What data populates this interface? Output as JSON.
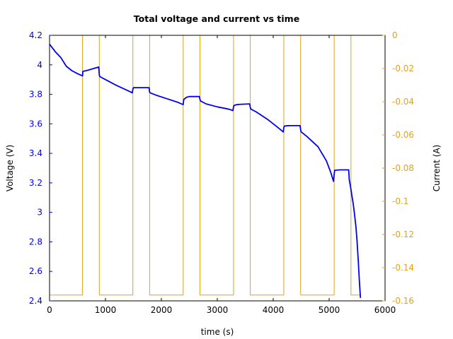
{
  "chart_data": {
    "type": "line",
    "title": "Total voltage and current vs time",
    "xlabel": "time (s)",
    "ylabel": "Voltage (V)",
    "y2label": "Current (A)",
    "xlim": [
      0,
      6000
    ],
    "ylim": [
      2.4,
      4.2
    ],
    "y2lim": [
      -0.16,
      0
    ],
    "x_ticks": [
      0,
      1000,
      2000,
      3000,
      4000,
      5000,
      6000
    ],
    "x_tick_labels": [
      "0",
      "1000",
      "2000",
      "3000",
      "4000",
      "5000",
      "6000"
    ],
    "y_ticks": [
      2.4,
      2.6,
      2.8,
      3.0,
      3.2,
      3.4,
      3.6,
      3.8,
      4.0,
      4.2
    ],
    "y_tick_labels": [
      "2.4",
      "2.6",
      "2.8",
      "3",
      "3.2",
      "3.4",
      "3.6",
      "3.8",
      "4",
      "4.2"
    ],
    "y2_ticks": [
      -0.16,
      -0.14,
      -0.12,
      -0.1,
      -0.08,
      -0.06,
      -0.04,
      -0.02,
      0
    ],
    "y2_tick_labels": [
      "-0.16",
      "-0.14",
      "-0.12",
      "-0.1",
      "-0.08",
      "-0.06",
      "-0.04",
      "-0.02",
      "0"
    ],
    "grid": false,
    "colors": {
      "voltage": "#0000ee",
      "current": "#e6a117",
      "voltage_axis": "#0000ee",
      "current_axis": "#e6a117"
    },
    "series": [
      {
        "axis": "left",
        "x": [
          0,
          100,
          200,
          300,
          400,
          500,
          590,
          595,
          700,
          880,
          890,
          900,
          1000,
          1200,
          1400,
          1480,
          1490,
          1500,
          1600,
          1780,
          1790,
          1800,
          1900,
          2100,
          2300,
          2390,
          2400,
          2450,
          2500,
          2680,
          2690,
          2700,
          2800,
          3000,
          3200,
          3280,
          3290,
          3300,
          3350,
          3400,
          3580,
          3590,
          3600,
          3700,
          3900,
          4100,
          4180,
          4190,
          4200,
          4250,
          4300,
          4480,
          4490,
          4500,
          4600,
          4800,
          4950,
          5030,
          5070,
          5080,
          5090,
          5100,
          5150,
          5200,
          5340,
          5350,
          5360,
          5380,
          5400,
          5430,
          5450,
          5480,
          5500,
          5520,
          5540,
          5555,
          5560
        ],
        "y": [
          4.14,
          4.09,
          4.05,
          3.99,
          3.96,
          3.94,
          3.925,
          3.955,
          3.965,
          3.985,
          3.93,
          3.92,
          3.9,
          3.86,
          3.825,
          3.81,
          3.835,
          3.845,
          3.845,
          3.845,
          3.815,
          3.81,
          3.795,
          3.77,
          3.745,
          3.73,
          3.765,
          3.78,
          3.785,
          3.785,
          3.765,
          3.755,
          3.735,
          3.715,
          3.7,
          3.69,
          3.715,
          3.725,
          3.73,
          3.732,
          3.735,
          3.71,
          3.7,
          3.68,
          3.63,
          3.57,
          3.545,
          3.575,
          3.585,
          3.587,
          3.588,
          3.588,
          3.56,
          3.545,
          3.515,
          3.445,
          3.35,
          3.27,
          3.22,
          3.21,
          3.26,
          3.285,
          3.287,
          3.288,
          3.288,
          3.288,
          3.22,
          3.18,
          3.13,
          3.06,
          3.0,
          2.9,
          2.8,
          2.68,
          2.54,
          2.45,
          2.42
        ]
      },
      {
        "axis": "right",
        "x": [
          0,
          590,
          590,
          890,
          890,
          1490,
          1490,
          1790,
          1790,
          2390,
          2390,
          2690,
          2690,
          3290,
          3290,
          3590,
          3590,
          4190,
          4190,
          4490,
          4490,
          5090,
          5090,
          5390,
          5390,
          5560
        ],
        "y": [
          -0.1565,
          -0.1565,
          0,
          0,
          -0.1565,
          -0.1565,
          0,
          0,
          -0.1565,
          -0.1565,
          0,
          0,
          -0.1565,
          -0.1565,
          0,
          0,
          -0.1565,
          -0.1565,
          0,
          0,
          -0.1565,
          -0.1565,
          0,
          0,
          -0.1565,
          -0.1565
        ]
      }
    ]
  }
}
